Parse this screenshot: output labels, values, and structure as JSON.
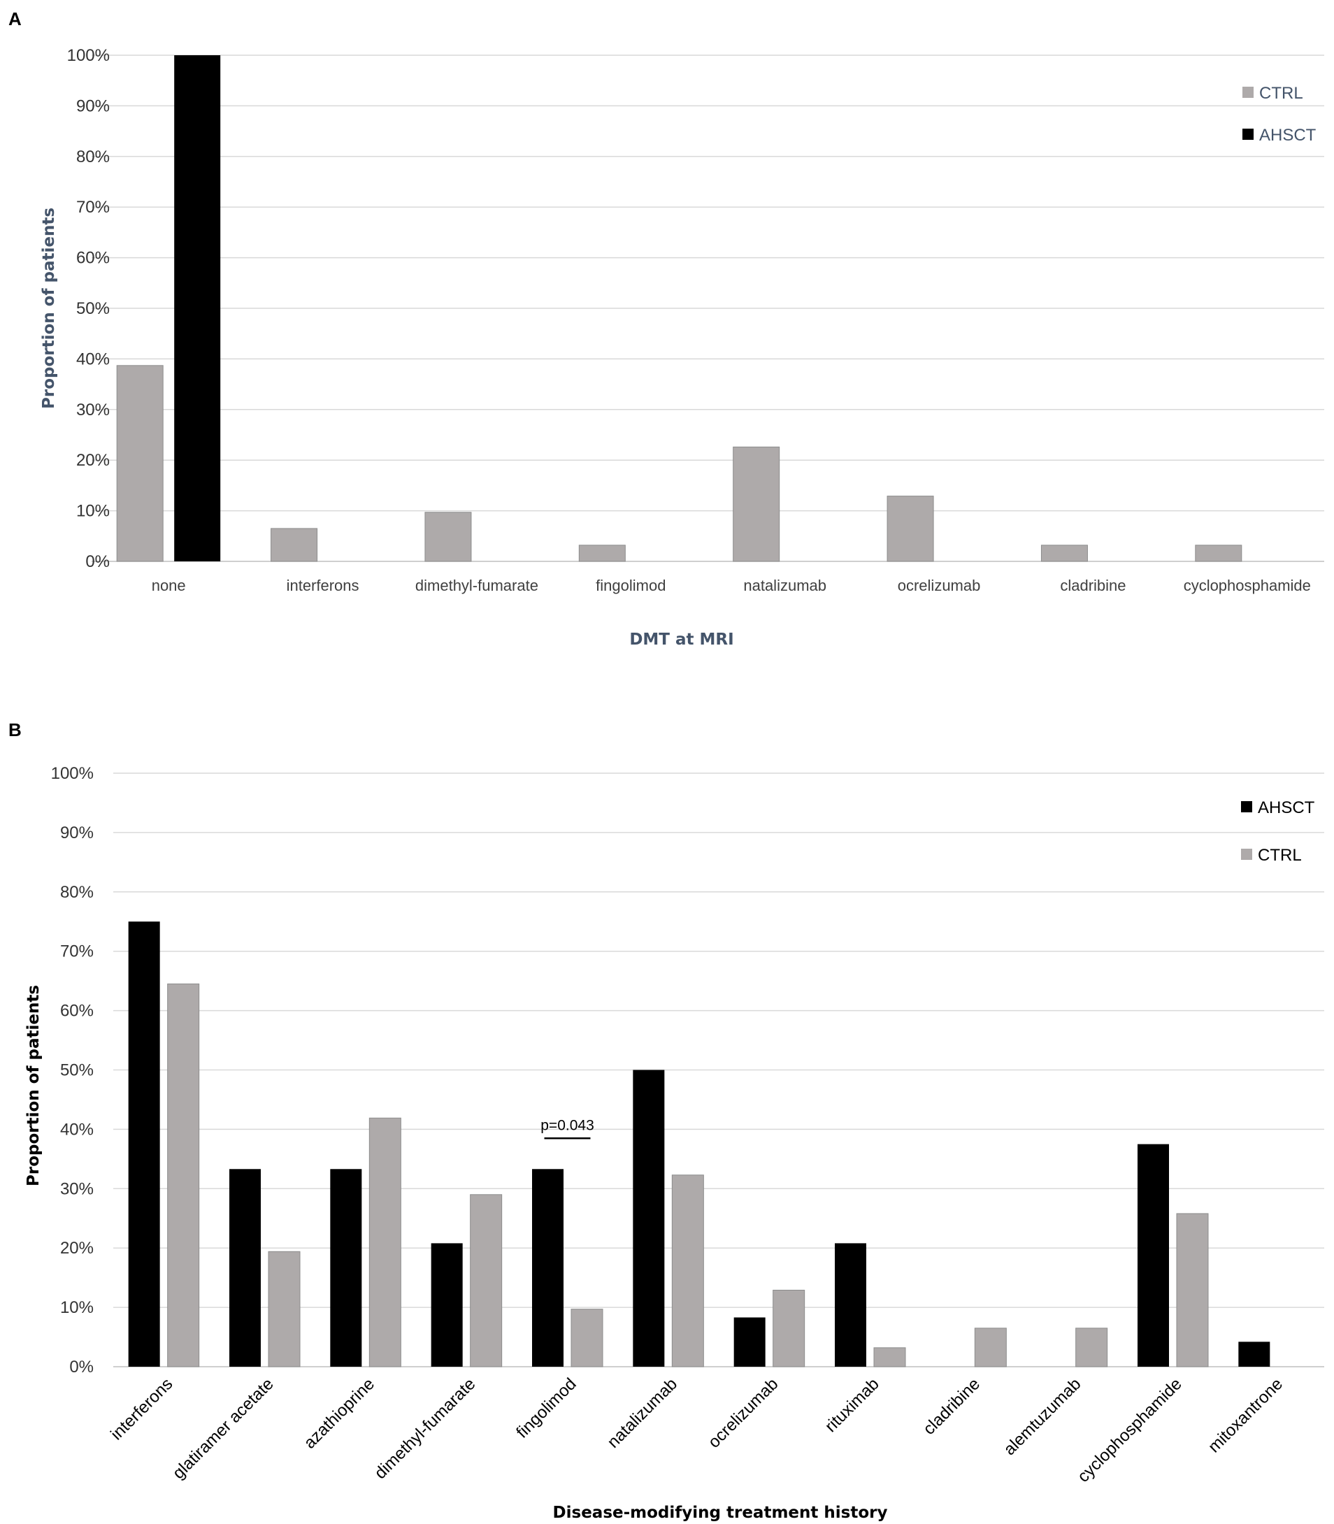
{
  "colors": {
    "AHSCT": "#000000",
    "CTRL": "#aeaaaa",
    "grid": "#d9d9d9"
  },
  "chart_data": [
    {
      "panel": "A",
      "type": "bar",
      "xlabel": "DMT at MRI",
      "ylabel": "Proportion of patients",
      "ylim": [
        0,
        100
      ],
      "yticks": [
        "0%",
        "10%",
        "20%",
        "30%",
        "40%",
        "50%",
        "60%",
        "70%",
        "80%",
        "90%",
        "100%"
      ],
      "grid": true,
      "legend_position": "top-right",
      "legend": [
        "CTRL",
        "AHSCT"
      ],
      "categories": [
        "none",
        "interferons",
        "dimethyl-fumarate",
        "fingolimod",
        "natalizumab",
        "ocrelizumab",
        "cladribine",
        "cyclophosphamide"
      ],
      "series": [
        {
          "name": "CTRL",
          "values": [
            38.7,
            6.5,
            9.7,
            3.2,
            22.6,
            12.9,
            3.2,
            3.2
          ]
        },
        {
          "name": "AHSCT",
          "values": [
            100,
            0,
            0,
            0,
            0,
            0,
            0,
            0
          ]
        }
      ]
    },
    {
      "panel": "B",
      "type": "bar",
      "xlabel": "Disease-modifying treatment history",
      "ylabel": "Proportion of patients",
      "ylim": [
        0,
        100
      ],
      "yticks": [
        "0%",
        "10%",
        "20%",
        "30%",
        "40%",
        "50%",
        "60%",
        "70%",
        "80%",
        "90%",
        "100%"
      ],
      "grid": true,
      "legend_position": "top-right",
      "legend": [
        "AHSCT",
        "CTRL"
      ],
      "categories": [
        "interferons",
        "glatiramer acetate",
        "azathioprine",
        "dimethyl-fumarate",
        "fingolimod",
        "natalizumab",
        "ocrelizumab",
        "rituximab",
        "cladribine",
        "alemtuzumab",
        "cyclophosphamide",
        "mitoxantrone"
      ],
      "series": [
        {
          "name": "AHSCT",
          "values": [
            75,
            33.3,
            33.3,
            20.8,
            33.3,
            50,
            8.3,
            20.8,
            0,
            0,
            37.5,
            4.2
          ]
        },
        {
          "name": "CTRL",
          "values": [
            64.5,
            19.4,
            41.9,
            29,
            9.7,
            32.3,
            12.9,
            3.2,
            6.5,
            6.5,
            25.8,
            0
          ]
        }
      ],
      "annotations": [
        {
          "text": "p=0.043",
          "category": "fingolimod"
        }
      ]
    }
  ]
}
